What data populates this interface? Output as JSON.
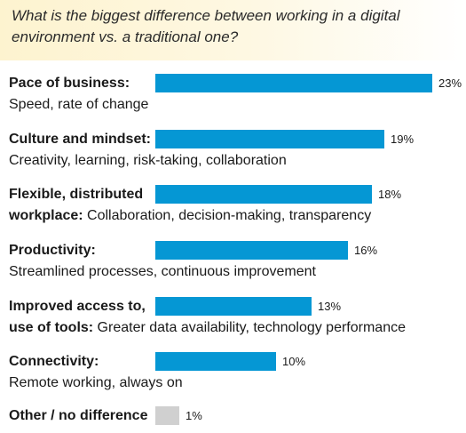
{
  "question": "What is the biggest difference between working in a digital environment vs. a traditional one?",
  "colors": {
    "bar": "#0597d4",
    "other_bar": "#d0d0d0"
  },
  "chart_data": {
    "type": "bar",
    "orientation": "horizontal",
    "title": "What is the biggest difference between working in a digital environment vs. a traditional one?",
    "categories": [
      "Pace of business",
      "Culture and mindset",
      "Flexible, distributed workplace",
      "Productivity",
      "Improved access to, use of tools",
      "Connectivity",
      "Other / no difference"
    ],
    "values": [
      23,
      19,
      18,
      16,
      13,
      10,
      1
    ],
    "unit": "%",
    "value_labels": [
      "23%",
      "19%",
      "18%",
      "16%",
      "13%",
      "10%",
      "1%"
    ],
    "xlim": [
      0,
      23
    ],
    "grid": false,
    "legend": "none"
  },
  "items": [
    {
      "bold1": "Pace of business:",
      "bold2": "",
      "sub": "Speed, rate of change"
    },
    {
      "bold1": "Culture and mindset:",
      "bold2": "",
      "sub": "Creativity, learning, risk-taking, collaboration"
    },
    {
      "bold1": "Flexible, distributed",
      "bold2": "workplace:",
      "sub": " Collaboration, decision-making, transparency"
    },
    {
      "bold1": "Productivity:",
      "bold2": "",
      "sub": "Streamlined processes, continuous improvement"
    },
    {
      "bold1": "Improved access to,",
      "bold2": "use of tools:",
      "sub": " Greater data availability, technology performance"
    },
    {
      "bold1": "Connectivity:",
      "bold2": "",
      "sub": "Remote working, always on"
    },
    {
      "bold1": "Other / no difference",
      "bold2": "",
      "sub": ""
    }
  ]
}
